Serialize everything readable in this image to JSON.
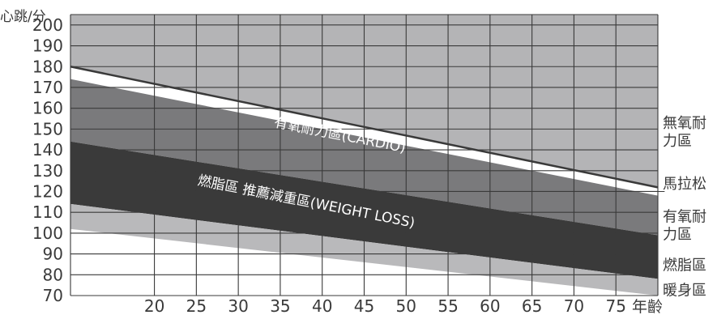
{
  "chart_data": {
    "type": "area",
    "title": "",
    "ylabel": "心跳/分",
    "xlabel": "年齡",
    "ylim": [
      70,
      205
    ],
    "xlim": [
      10,
      80
    ],
    "yticks": [
      70,
      80,
      90,
      100,
      110,
      120,
      130,
      140,
      150,
      160,
      170,
      180,
      190,
      200
    ],
    "xticks": [
      20,
      25,
      30,
      35,
      40,
      45,
      50,
      55,
      60,
      65,
      70,
      75
    ],
    "grid": true,
    "colors": {
      "background_zone": "#b4b4b6",
      "cardio_zone": "#7a7a7c",
      "weight_loss_zone": "#3a3a3a",
      "warmup_zone": "#b9b9bb",
      "max_line": "#3a3a3a",
      "gridline": "#3a3a3a"
    },
    "series": [
      {
        "name": "無氧耐力區",
        "x": [
          10,
          80
        ],
        "upper": [
          205,
          205
        ],
        "lower": [
          180,
          122
        ]
      },
      {
        "name": "馬拉松",
        "x": [
          10,
          80
        ],
        "upper": [
          180,
          122
        ],
        "lower": [
          174,
          118
        ]
      },
      {
        "name": "有氧耐力區",
        "x": [
          10,
          80
        ],
        "upper": [
          174,
          118
        ],
        "lower": [
          144,
          99
        ]
      },
      {
        "name": "燃脂區",
        "x": [
          10,
          80
        ],
        "upper": [
          144,
          99
        ],
        "lower": [
          114,
          78
        ]
      },
      {
        "name": "暖身區",
        "x": [
          10,
          80
        ],
        "upper": [
          114,
          78
        ],
        "lower": [
          102,
          70
        ]
      }
    ],
    "annotations": [
      {
        "text": "有氧耐力區(CARDIO)",
        "x": 42,
        "y": 145
      },
      {
        "text": "燃脂區 推薦減重區(WEIGHT LOSS)",
        "x": 38,
        "y": 113
      }
    ],
    "right_labels": [
      {
        "lines": [
          "無氧耐",
          "力區"
        ],
        "y": 149
      },
      {
        "lines": [
          "馬拉松"
        ],
        "y": 124
      },
      {
        "lines": [
          "有氧耐",
          "力區"
        ],
        "y": 104
      },
      {
        "lines": [
          "燃脂區"
        ],
        "y": 85
      },
      {
        "lines": [
          "暖身區"
        ],
        "y": 73
      }
    ]
  }
}
